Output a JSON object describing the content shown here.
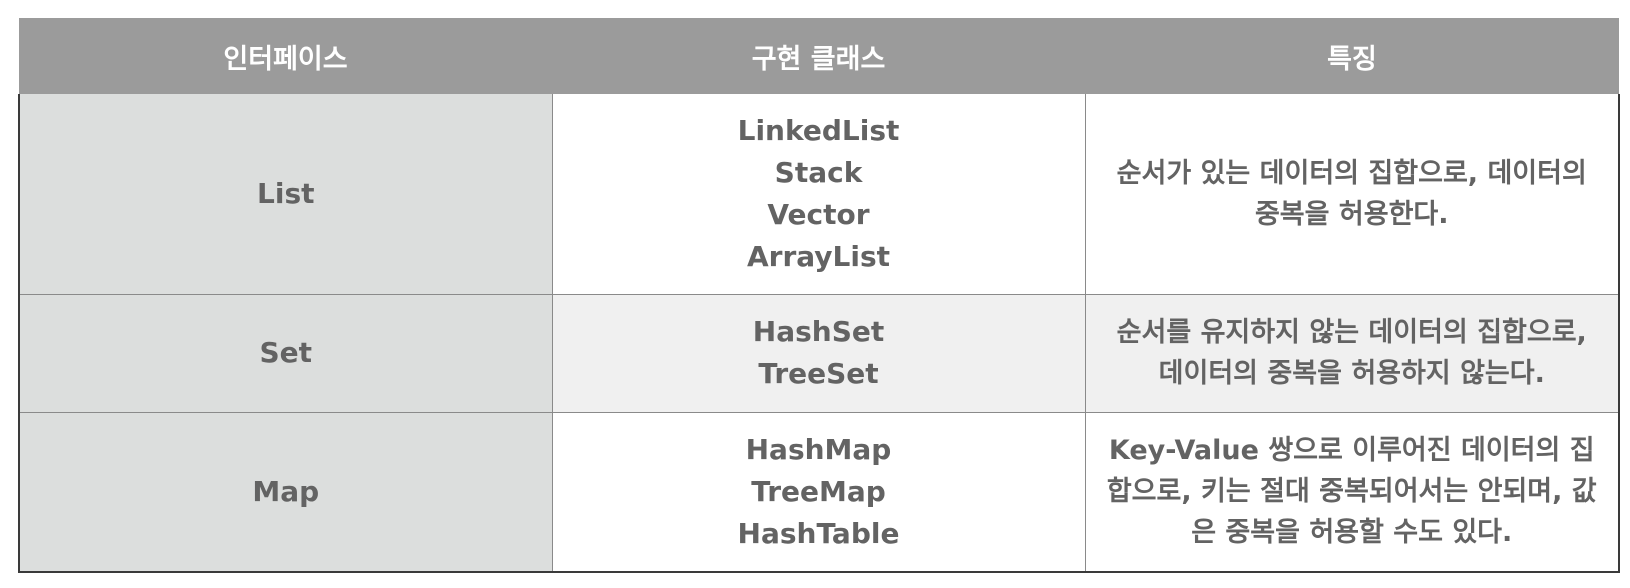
{
  "table": {
    "headers": [
      "인터페이스",
      "구현 클래스",
      "특징"
    ],
    "rows": [
      {
        "interface": "List",
        "implementations": [
          "LinkedList",
          "Stack",
          "Vector",
          "ArrayList"
        ],
        "feature": "순서가 있는 데이터의 집합으로, 데이터의 중복을 허용한다."
      },
      {
        "interface": "Set",
        "implementations": [
          "HashSet",
          "TreeSet"
        ],
        "feature": "순서를 유지하지 않는 데이터의 집합으로, 데이터의 중복을 허용하지 않는다."
      },
      {
        "interface": "Map",
        "implementations": [
          "HashMap",
          "TreeMap",
          "HashTable"
        ],
        "feature": "Key-Value 쌍으로 이루어진 데이터의 집합으로, 키는 절대 중복되어서는 안되며, 값은 중복을 허용할 수도 있다."
      }
    ]
  },
  "colors": {
    "header_bg": "#9b9b9b",
    "header_text": "#ffffff",
    "interface_bg": "#dcdedd",
    "set_row_bg": "#f0f0f0",
    "body_text": "#636363"
  }
}
